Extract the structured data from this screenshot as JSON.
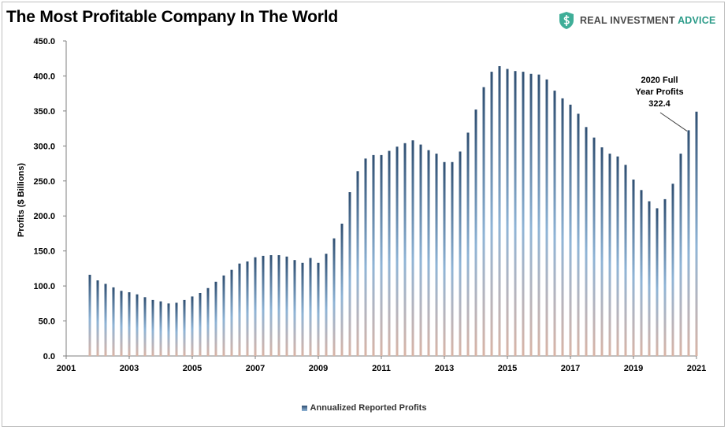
{
  "header": {
    "title": "The Most Profitable Company In The World",
    "logo_prefix": "REAL INVESTMENT",
    "logo_suffix": "ADVICE",
    "logo_icon": "shield-dollar-icon"
  },
  "chart_data": {
    "type": "bar",
    "title": "The Most Profitable Company In The World",
    "ylabel": "Profits ($ Billions)",
    "xlabel": "",
    "ylim": [
      0,
      450
    ],
    "yticks": [
      "0.0",
      "50.0",
      "100.0",
      "150.0",
      "200.0",
      "250.0",
      "300.0",
      "350.0",
      "400.0",
      "450.0"
    ],
    "xlim": [
      2001,
      2021
    ],
    "xticks": [
      "2001",
      "2003",
      "2005",
      "2007",
      "2009",
      "2011",
      "2013",
      "2015",
      "2017",
      "2019",
      "2021"
    ],
    "grid": false,
    "legend_position": "bottom",
    "colors": {
      "bar_top": "#2f4f72",
      "bar_mid": "#8fb4d6",
      "bar_bottom": "#d9b4a6"
    },
    "series": [
      {
        "name": "Annualized Reported Profits",
        "x": [
          2001.75,
          2002.0,
          2002.25,
          2002.5,
          2002.75,
          2003.0,
          2003.25,
          2003.5,
          2003.75,
          2004.0,
          2004.25,
          2004.5,
          2004.75,
          2005.0,
          2005.25,
          2005.5,
          2005.75,
          2006.0,
          2006.25,
          2006.5,
          2006.75,
          2007.0,
          2007.25,
          2007.5,
          2007.75,
          2008.0,
          2008.25,
          2008.5,
          2008.75,
          2009.0,
          2009.25,
          2009.5,
          2009.75,
          2010.0,
          2010.25,
          2010.5,
          2010.75,
          2011.0,
          2011.25,
          2011.5,
          2011.75,
          2012.0,
          2012.25,
          2012.5,
          2012.75,
          2013.0,
          2013.25,
          2013.5,
          2013.75,
          2014.0,
          2014.25,
          2014.5,
          2014.75,
          2015.0,
          2015.25,
          2015.5,
          2015.75,
          2016.0,
          2016.25,
          2016.5,
          2016.75,
          2017.0,
          2017.25,
          2017.5,
          2017.75,
          2018.0,
          2018.25,
          2018.5,
          2018.75,
          2019.0,
          2019.25,
          2019.5,
          2019.75,
          2020.0,
          2020.25,
          2020.5,
          2020.75,
          2021.0
        ],
        "values": [
          116,
          108,
          103,
          98,
          93,
          91,
          88,
          84,
          80,
          78,
          75,
          76,
          80,
          85,
          90,
          97,
          106,
          115,
          123,
          132,
          135,
          141,
          143,
          144,
          144,
          142,
          137,
          133,
          140,
          133,
          146,
          168,
          189,
          234,
          264,
          282,
          287,
          287,
          293,
          299,
          304,
          308,
          302,
          294,
          289,
          277,
          277,
          292,
          319,
          352,
          384,
          406,
          414,
          410,
          407,
          406,
          403,
          402,
          395,
          379,
          368,
          359,
          346,
          327,
          312,
          298,
          289,
          285,
          273,
          252,
          237,
          221,
          211,
          224,
          246,
          289,
          322.4,
          349
        ]
      }
    ],
    "annotations": [
      {
        "lines": [
          "2020 Full",
          "Year Profits",
          "322.4"
        ],
        "x": 2020.75,
        "y": 322.4
      }
    ]
  }
}
